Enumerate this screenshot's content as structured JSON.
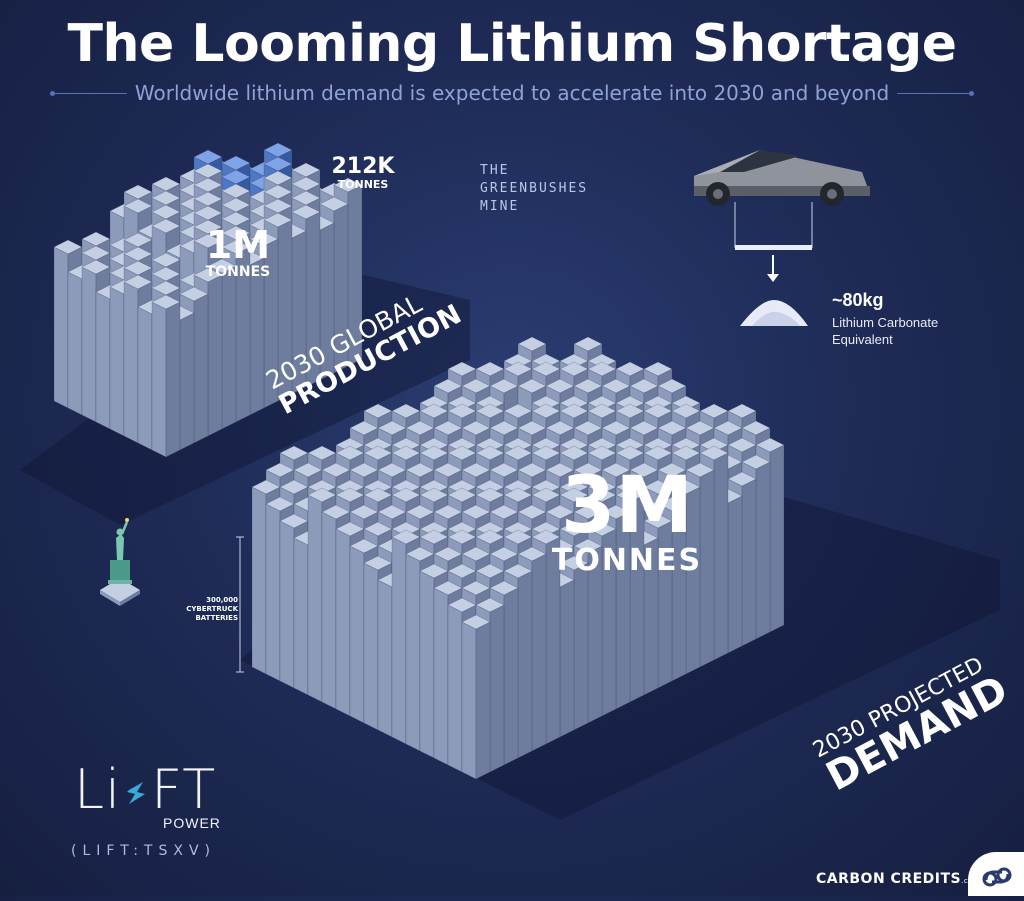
{
  "header": {
    "title": "The Looming Lithium Shortage",
    "subtitle": "Worldwide lithium demand is expected to accelerate into 2030 and beyond"
  },
  "production": {
    "value": "1M",
    "unit": "TONNES",
    "label_line1": "2030 GLOBAL",
    "label_line2": "PRODUCTION"
  },
  "greenbushes": {
    "value": "212K",
    "unit": "TONNES",
    "title": [
      "THE",
      "GREENBUSHES",
      "MINE"
    ]
  },
  "demand": {
    "value": "3M",
    "unit": "TONNES",
    "label_line1": "2030 PROJECTED",
    "label_line2": "DEMAND"
  },
  "cybertruck": {
    "amount": "~80kg",
    "amount_label": "Lithium Carbonate Equivalent",
    "scale_label": "300,000 CYBERTRUCK BATTERIES"
  },
  "logo": {
    "li": "Li",
    "ft": "FT",
    "power": "POWER",
    "ticker": "(LIFT:TSXV)"
  },
  "brand": {
    "name": "CARBON CREDITS",
    "suffix": ".com"
  },
  "colors": {
    "background": "#1f2c58",
    "block_light": "#c5cfe4",
    "block_side": "#8d9bbb",
    "block_dark": "#6e7c9d",
    "greenbushes_blue": "#4e77c4",
    "subtitle": "#8fa2d8",
    "logo_bolt": "#39a9d8"
  }
}
